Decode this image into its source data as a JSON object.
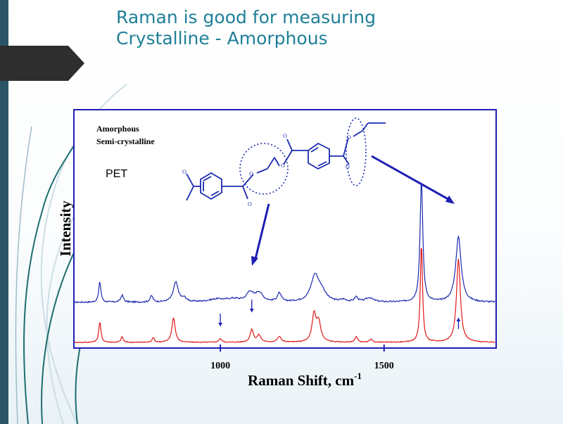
{
  "slide": {
    "title_line1": "Raman is good for measuring",
    "title_line2": "Crystalline - Amorphous"
  },
  "colors": {
    "accent": "#1f7f97",
    "left_bar": "#2b5567",
    "tab": "#2e2e2e",
    "frame": "#1e1eb4",
    "amorphous": "#1c2bb0",
    "semicrystalline": "#e01818",
    "annotation": "#1e1eb4"
  },
  "chart_data": {
    "type": "line",
    "title": "",
    "xlabel": "Raman Shift, cm",
    "xlabel_superscript": "-1",
    "ylabel": "Intensity",
    "xlim": [
      555,
      1840
    ],
    "x_ticks": [
      1000,
      1500
    ],
    "x_tick_labels": [
      "1000",
      "1500"
    ],
    "legend_lines": [
      "Amorphous",
      "Semi-crystalline"
    ],
    "annotation_text": "PET",
    "series": [
      {
        "name": "Amorphous",
        "color": "#1c2bb0",
        "baseline": 0.29,
        "noise": 0.02,
        "peaks": [
          {
            "x": 632,
            "h": 0.29,
            "w": 4
          },
          {
            "x": 700,
            "h": 0.1,
            "w": 5
          },
          {
            "x": 790,
            "h": 0.09,
            "w": 5
          },
          {
            "x": 864,
            "h": 0.28,
            "w": 9
          },
          {
            "x": 890,
            "h": 0.05,
            "w": 8
          },
          {
            "x": 990,
            "h": 0.04,
            "w": 30
          },
          {
            "x": 1040,
            "h": 0.04,
            "w": 25
          },
          {
            "x": 1090,
            "h": 0.13,
            "w": 12
          },
          {
            "x": 1118,
            "h": 0.13,
            "w": 14
          },
          {
            "x": 1180,
            "h": 0.12,
            "w": 7
          },
          {
            "x": 1289,
            "h": 0.37,
            "w": 15
          },
          {
            "x": 1310,
            "h": 0.12,
            "w": 15
          },
          {
            "x": 1375,
            "h": 0.03,
            "w": 10
          },
          {
            "x": 1415,
            "h": 0.07,
            "w": 6
          },
          {
            "x": 1455,
            "h": 0.06,
            "w": 14
          },
          {
            "x": 1614,
            "h": 1.74,
            "w": 5
          },
          {
            "x": 1727,
            "h": 0.93,
            "w": 10
          }
        ]
      },
      {
        "name": "Semi-crystalline",
        "color": "#e01818",
        "baseline": 0.02,
        "noise": 0.012,
        "peaks": [
          {
            "x": 632,
            "h": 0.29,
            "w": 4
          },
          {
            "x": 700,
            "h": 0.08,
            "w": 4
          },
          {
            "x": 795,
            "h": 0.07,
            "w": 4
          },
          {
            "x": 857,
            "h": 0.35,
            "w": 6
          },
          {
            "x": 1000,
            "h": 0.05,
            "w": 6
          },
          {
            "x": 1096,
            "h": 0.18,
            "w": 6
          },
          {
            "x": 1118,
            "h": 0.1,
            "w": 7
          },
          {
            "x": 1180,
            "h": 0.08,
            "w": 7
          },
          {
            "x": 1286,
            "h": 0.38,
            "w": 7
          },
          {
            "x": 1300,
            "h": 0.28,
            "w": 8
          },
          {
            "x": 1415,
            "h": 0.08,
            "w": 5
          },
          {
            "x": 1460,
            "h": 0.04,
            "w": 5
          },
          {
            "x": 1614,
            "h": 1.41,
            "w": 4
          },
          {
            "x": 1727,
            "h": 1.19,
            "w": 7
          }
        ]
      }
    ],
    "markers": [
      {
        "type": "down-arrow",
        "x": 1000
      },
      {
        "type": "down-arrow",
        "x": 1096
      },
      {
        "type": "up-arrow",
        "x": 1727
      }
    ]
  }
}
